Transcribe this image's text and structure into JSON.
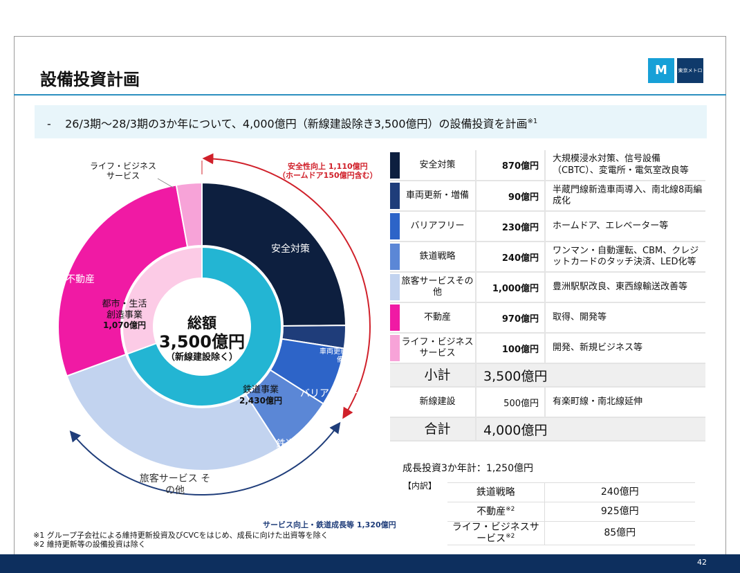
{
  "header": {
    "title": "設備投資計画",
    "logo_text": "東京メトロ"
  },
  "banner": {
    "bullet": "-",
    "text": "26/3期～28/3期の3か年について、4,000億円（新線建設除き3,500億円）の設備投資を計画",
    "note": "※1"
  },
  "chart_data": {
    "type": "pie",
    "subtype": "double-donut",
    "center": {
      "line1": "総額",
      "line2": "3,500億円",
      "line3": "（新線建設除く）"
    },
    "unit": "億円",
    "outer": [
      {
        "name": "安全対策",
        "label": "安全対策",
        "value": 870,
        "color": "#0d1f3f"
      },
      {
        "name": "車両更新・増備",
        "label": "車両更新・増備",
        "value": 90,
        "color": "#1f3d7a"
      },
      {
        "name": "バリアフリー",
        "label": "バリアフリー",
        "value": 230,
        "color": "#2d64c8"
      },
      {
        "name": "鉄道戦略",
        "label": "鉄道戦略",
        "value": 240,
        "color": "#5b87d6"
      },
      {
        "name": "旅客サービスその他",
        "label": "旅客サービス その他",
        "value": 1000,
        "color": "#c2d3ef"
      },
      {
        "name": "不動産",
        "label": "不動産",
        "value": 970,
        "color": "#f01aa4"
      },
      {
        "name": "ライフ・ビジネスサービス",
        "label": "ライフ・ビジネス サービス",
        "value": 100,
        "color": "#f7a3d8"
      }
    ],
    "inner": [
      {
        "name": "鉄道事業",
        "label": "鉄道事業",
        "amount_label": "2,430億円",
        "value": 2430,
        "color": "#23b5d3"
      },
      {
        "name": "都市・生活創造事業",
        "label": "都市・生活 創造事業",
        "amount_label": "1,070億円",
        "value": 1070,
        "color": "#fccbe6"
      }
    ],
    "annotations": {
      "safety": "安全性向上 1,110億円",
      "safety_sub": "（ホームドア150億円含む）",
      "service": "サービス向上・鉄道成長等 1,320億円"
    },
    "annotation_colors": {
      "safety": "#d0202a",
      "service": "#1f3d7a"
    }
  },
  "table": {
    "rows": [
      {
        "name": "安全対策",
        "amount": "870億円",
        "desc": "大規模浸水対策、信号設備（CBTC）、変電所・電気室改良等",
        "color": "#0d1f3f"
      },
      {
        "name": "車両更新・増備",
        "amount": "90億円",
        "desc": "半蔵門線新造車両導入、南北線8両編成化",
        "color": "#1f3d7a"
      },
      {
        "name": "バリアフリー",
        "amount": "230億円",
        "desc": "ホームドア、エレベーター等",
        "color": "#2d64c8"
      },
      {
        "name": "鉄道戦略",
        "amount": "240億円",
        "desc": "ワンマン・自動運転、CBM、クレジットカードのタッチ決済、LED化等",
        "color": "#5b87d6"
      },
      {
        "name": "旅客サービスその他",
        "amount": "1,000億円",
        "desc": "豊洲駅駅改良、東西線輸送改善等",
        "color": "#c2d3ef"
      },
      {
        "name": "不動産",
        "amount": "970億円",
        "desc": "取得、開発等",
        "color": "#f01aa4"
      },
      {
        "name": "ライフ・ビジネスサービス",
        "amount": "100億円",
        "desc": "開発、新規ビジネス等",
        "color": "#f7a3d8"
      }
    ],
    "subtotal": {
      "label": "小計",
      "amount": "3,500億円"
    },
    "new_line": {
      "name": "新線建設",
      "amount": "500億円",
      "desc": "有楽町線・南北線延伸"
    },
    "total": {
      "label": "合計",
      "amount": "4,000億円"
    }
  },
  "growth": {
    "title": "成長投資3か年計：1,250億円",
    "breakdown_label": "【内訳】",
    "rows": [
      {
        "name": "鉄道戦略",
        "note": "",
        "amount": "240億円"
      },
      {
        "name": "不動産",
        "note": "※2",
        "amount": "925億円"
      },
      {
        "name": "ライフ・ビジネスサービス",
        "note": "※2",
        "amount": "85億円"
      }
    ]
  },
  "notes": [
    "※1  グループ子会社による維持更新投資及びCVCをはじめ、成長に向けた出資等を除く",
    "※2  維持更新等の設備投資は除く"
  ],
  "footer": {
    "page": "42"
  }
}
